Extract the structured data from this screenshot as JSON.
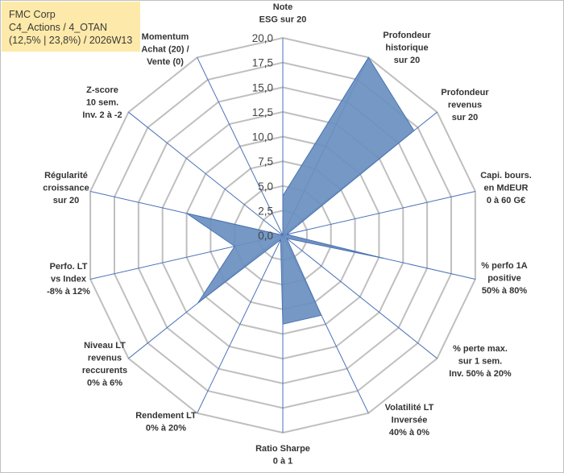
{
  "title_lines": [
    "FMC Corp",
    "C4_Actions / 4_OTAN",
    "(12,5% | 23,8%) / 2026W13"
  ],
  "chart_data": {
    "type": "radar",
    "rmax": 20,
    "ticks": [
      "0,0",
      "2,5",
      "5,0",
      "7,5",
      "10,0",
      "12,5",
      "15,0",
      "17,5",
      "20,0"
    ],
    "tick_values": [
      0,
      2.5,
      5,
      7.5,
      10,
      12.5,
      15,
      17.5,
      20
    ],
    "axes": [
      {
        "label": [
          "Note",
          "ESG sur 20"
        ],
        "value": 4.0
      },
      {
        "label": [
          "Profondeur",
          "historique",
          "sur 20"
        ],
        "value": 20.0
      },
      {
        "label": [
          "Profondeur",
          "revenus",
          "sur 20"
        ],
        "value": 17.0
      },
      {
        "label": [
          "Capi. bours.",
          "en MdEUR",
          "0 à 60 G€"
        ],
        "value": 0.4
      },
      {
        "label": [
          "% perfo 1A",
          "positive",
          "50% à 80%"
        ],
        "value": 10.5
      },
      {
        "label": [
          "% perte max.",
          "sur 1 sem.",
          "Inv. 50% à 20%"
        ],
        "value": 0.5
      },
      {
        "label": [
          "Volatilité LT",
          "Inversée",
          "40% à 0%"
        ],
        "value": 9.0
      },
      {
        "label": [
          "Ratio Sharpe",
          "0 à 1"
        ],
        "value": 9.0
      },
      {
        "label": [
          "Rendement LT",
          "0% à 20%"
        ],
        "value": 0.5
      },
      {
        "label": [
          "Niveau LT",
          "revenus",
          "reccurents",
          "0% à 6%"
        ],
        "value": 11.0
      },
      {
        "label": [
          "Perfo. LT",
          "vs Index",
          "-8% à 12%"
        ],
        "value": 5.0
      },
      {
        "label": [
          "Régularité",
          "croissance",
          "sur 20"
        ],
        "value": 10.0
      },
      {
        "label": [
          "Z-score",
          "10 sem.",
          "Inv. 2 à -2"
        ],
        "value": 0.0
      },
      {
        "label": [
          "Momentum",
          "Achat (20) /",
          "Vente (0)"
        ],
        "value": 0.0
      }
    ],
    "series": [
      {
        "color": "#6a8fc0",
        "stroke": "#4a72b0"
      }
    ],
    "grid_color": "#bfbfbf",
    "spoke_color": "#4a72b8"
  }
}
